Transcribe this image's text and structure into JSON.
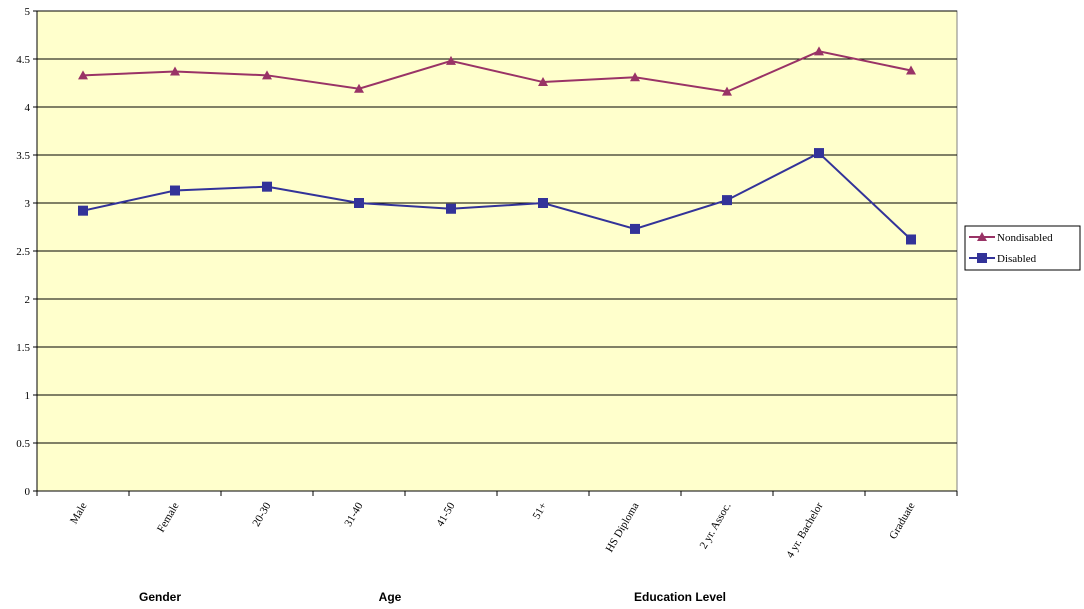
{
  "chart_data": {
    "type": "line",
    "categories": [
      "Male",
      "Female",
      "20-30",
      "31-40",
      "41-50",
      "51+",
      "HS Diploma",
      "2 yr. Assoc.",
      "4 yr. Bachelor",
      "Graduate"
    ],
    "group_labels": [
      "Gender",
      "Age",
      "Education Level"
    ],
    "series": [
      {
        "name": "Nondisabled",
        "color": "#993366",
        "marker": "triangle",
        "values": [
          4.33,
          4.37,
          4.33,
          4.19,
          4.48,
          4.26,
          4.31,
          4.16,
          4.58,
          4.38
        ]
      },
      {
        "name": "Disabled",
        "color": "#333399",
        "marker": "square",
        "values": [
          2.92,
          3.13,
          3.17,
          3.0,
          2.94,
          3.0,
          2.73,
          3.03,
          3.52,
          2.62
        ]
      }
    ],
    "ylim": [
      0,
      5
    ],
    "yticks": [
      0,
      0.5,
      1,
      1.5,
      2,
      2.5,
      3,
      3.5,
      4,
      4.5,
      5
    ],
    "grid": true,
    "plot_background": "#ffffcc",
    "legend": "right"
  }
}
